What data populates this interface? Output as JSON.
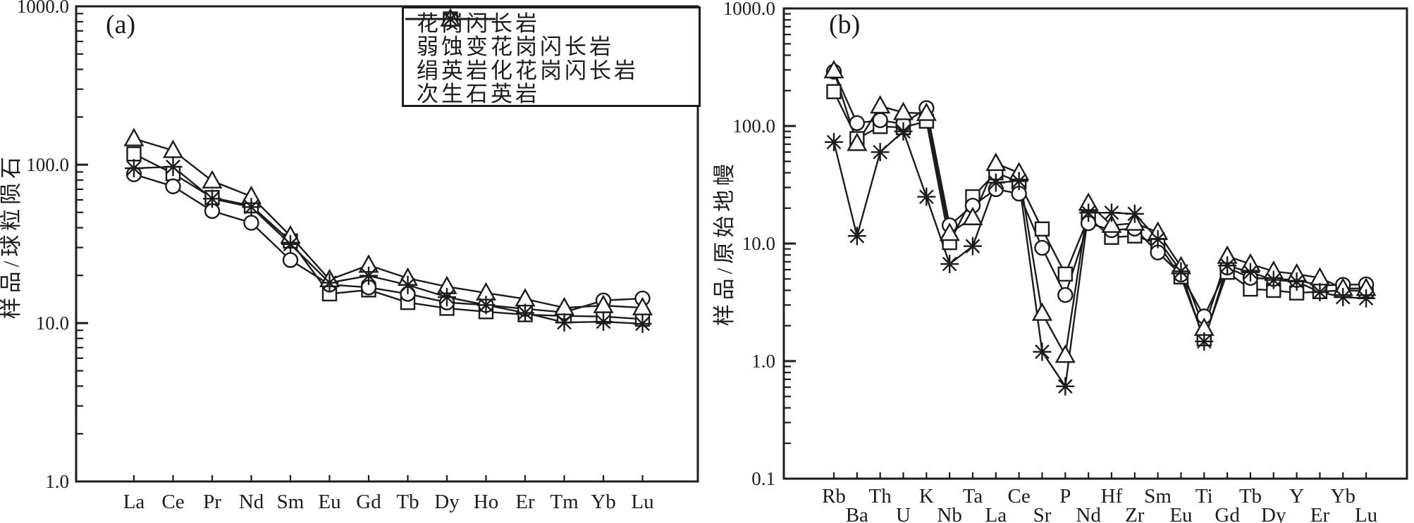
{
  "figure": {
    "background": "#ffffff",
    "ink_color": "#1c1c1c",
    "legend": {
      "position": "top-right-inside-panel-a",
      "entries": [
        {
          "label": "花岗闪长岩",
          "marker": "square"
        },
        {
          "label": "弱蚀变花岗闪长岩",
          "marker": "circle"
        },
        {
          "label": "绢英岩化花岗闪长岩",
          "marker": "triangle"
        },
        {
          "label": "次生石英岩",
          "marker": "asterisk"
        }
      ]
    }
  },
  "chart_data": [
    {
      "type": "line",
      "panel_label": "(a)",
      "title": "",
      "xlabel": "",
      "ylabel": "样品/球粒陨石",
      "y_scale": "log",
      "ylim": [
        1.0,
        1000.0
      ],
      "ytick_labels": [
        "1000.0",
        "100.0",
        "10.0",
        "1.0"
      ],
      "grid": false,
      "categories": [
        "La",
        "Ce",
        "Pr",
        "Nd",
        "Sm",
        "Eu",
        "Gd",
        "Tb",
        "Dy",
        "Ho",
        "Er",
        "Tm",
        "Yb",
        "Lu"
      ],
      "x_label_stagger": false,
      "series": [
        {
          "name": "花岗闪长岩",
          "marker": "square",
          "values": [
            117,
            88,
            62,
            55,
            33,
            15.3,
            16.2,
            13.5,
            12.4,
            11.8,
            11.3,
            11.1,
            11.0,
            10.6
          ]
        },
        {
          "name": "弱蚀变花岗闪长岩",
          "marker": "circle",
          "values": [
            87,
            73,
            51,
            43,
            25,
            17.5,
            16.8,
            15.3,
            13.5,
            13.0,
            12.3,
            11.7,
            13.9,
            14.3
          ]
        },
        {
          "name": "绢英岩化花岗闪长岩",
          "marker": "triangle",
          "values": [
            146,
            123,
            79,
            63,
            35.5,
            18.8,
            23.2,
            19.2,
            17.0,
            15.5,
            14.2,
            12.5,
            12.9,
            12.5
          ]
        },
        {
          "name": "次生石英岩",
          "marker": "asterisk",
          "values": [
            95,
            97,
            61,
            54,
            31.5,
            18.0,
            19.9,
            17.4,
            14.6,
            13.0,
            11.6,
            10.1,
            10.2,
            9.9
          ]
        }
      ]
    },
    {
      "type": "line",
      "panel_label": "(b)",
      "title": "",
      "xlabel": "",
      "ylabel": "样品/原始地幔",
      "y_scale": "log",
      "ylim": [
        0.1,
        1000.0
      ],
      "ytick_labels": [
        "1000.0",
        "100.0",
        "10.0",
        "1.0",
        "0.1"
      ],
      "grid": false,
      "categories": [
        "Rb",
        "Ba",
        "Th",
        "U",
        "K",
        "Nb",
        "Ta",
        "La",
        "Ce",
        "Sr",
        "P",
        "Nd",
        "Hf",
        "Zr",
        "Sm",
        "Eu",
        "Ti",
        "Gd",
        "Tb",
        "Dy",
        "Y",
        "Er",
        "Yb",
        "Lu"
      ],
      "x_label_stagger": true,
      "series": [
        {
          "name": "花岗闪长岩",
          "marker": "square",
          "values": [
            196,
            78,
            99,
            97,
            110,
            10.2,
            25,
            40,
            33.5,
            13.3,
            5.5,
            16.6,
            11.3,
            11.6,
            10.0,
            5.2,
            1.55,
            5.7,
            4.1,
            4.0,
            3.8,
            3.9,
            4.0,
            3.95
          ]
        },
        {
          "name": "弱蚀变花岗闪长岩",
          "marker": "circle",
          "values": [
            290,
            106,
            112,
            104,
            142,
            14.3,
            21,
            29,
            26.6,
            9.2,
            3.65,
            14.9,
            13.0,
            13.4,
            8.4,
            5.45,
            2.4,
            6.25,
            5.1,
            5.0,
            4.9,
            4.4,
            4.45,
            4.5
          ]
        },
        {
          "name": "绢英岩化花岗闪长岩",
          "marker": "triangle",
          "values": [
            295,
            71,
            148,
            130,
            128,
            12.2,
            16.6,
            48,
            40,
            2.55,
            1.12,
            22,
            14.3,
            14.9,
            12.5,
            6.35,
            1.9,
            7.8,
            6.7,
            5.8,
            5.5,
            5.1,
            4.15,
            4.15
          ]
        },
        {
          "name": "次生石英岩",
          "marker": "asterisk",
          "values": [
            73,
            11.6,
            60,
            90,
            25,
            6.7,
            9.5,
            33,
            34,
            1.2,
            0.61,
            18.3,
            18.3,
            17.9,
            10.9,
            5.8,
            1.47,
            6.5,
            5.7,
            4.9,
            4.75,
            3.86,
            3.5,
            3.42
          ]
        }
      ]
    }
  ]
}
